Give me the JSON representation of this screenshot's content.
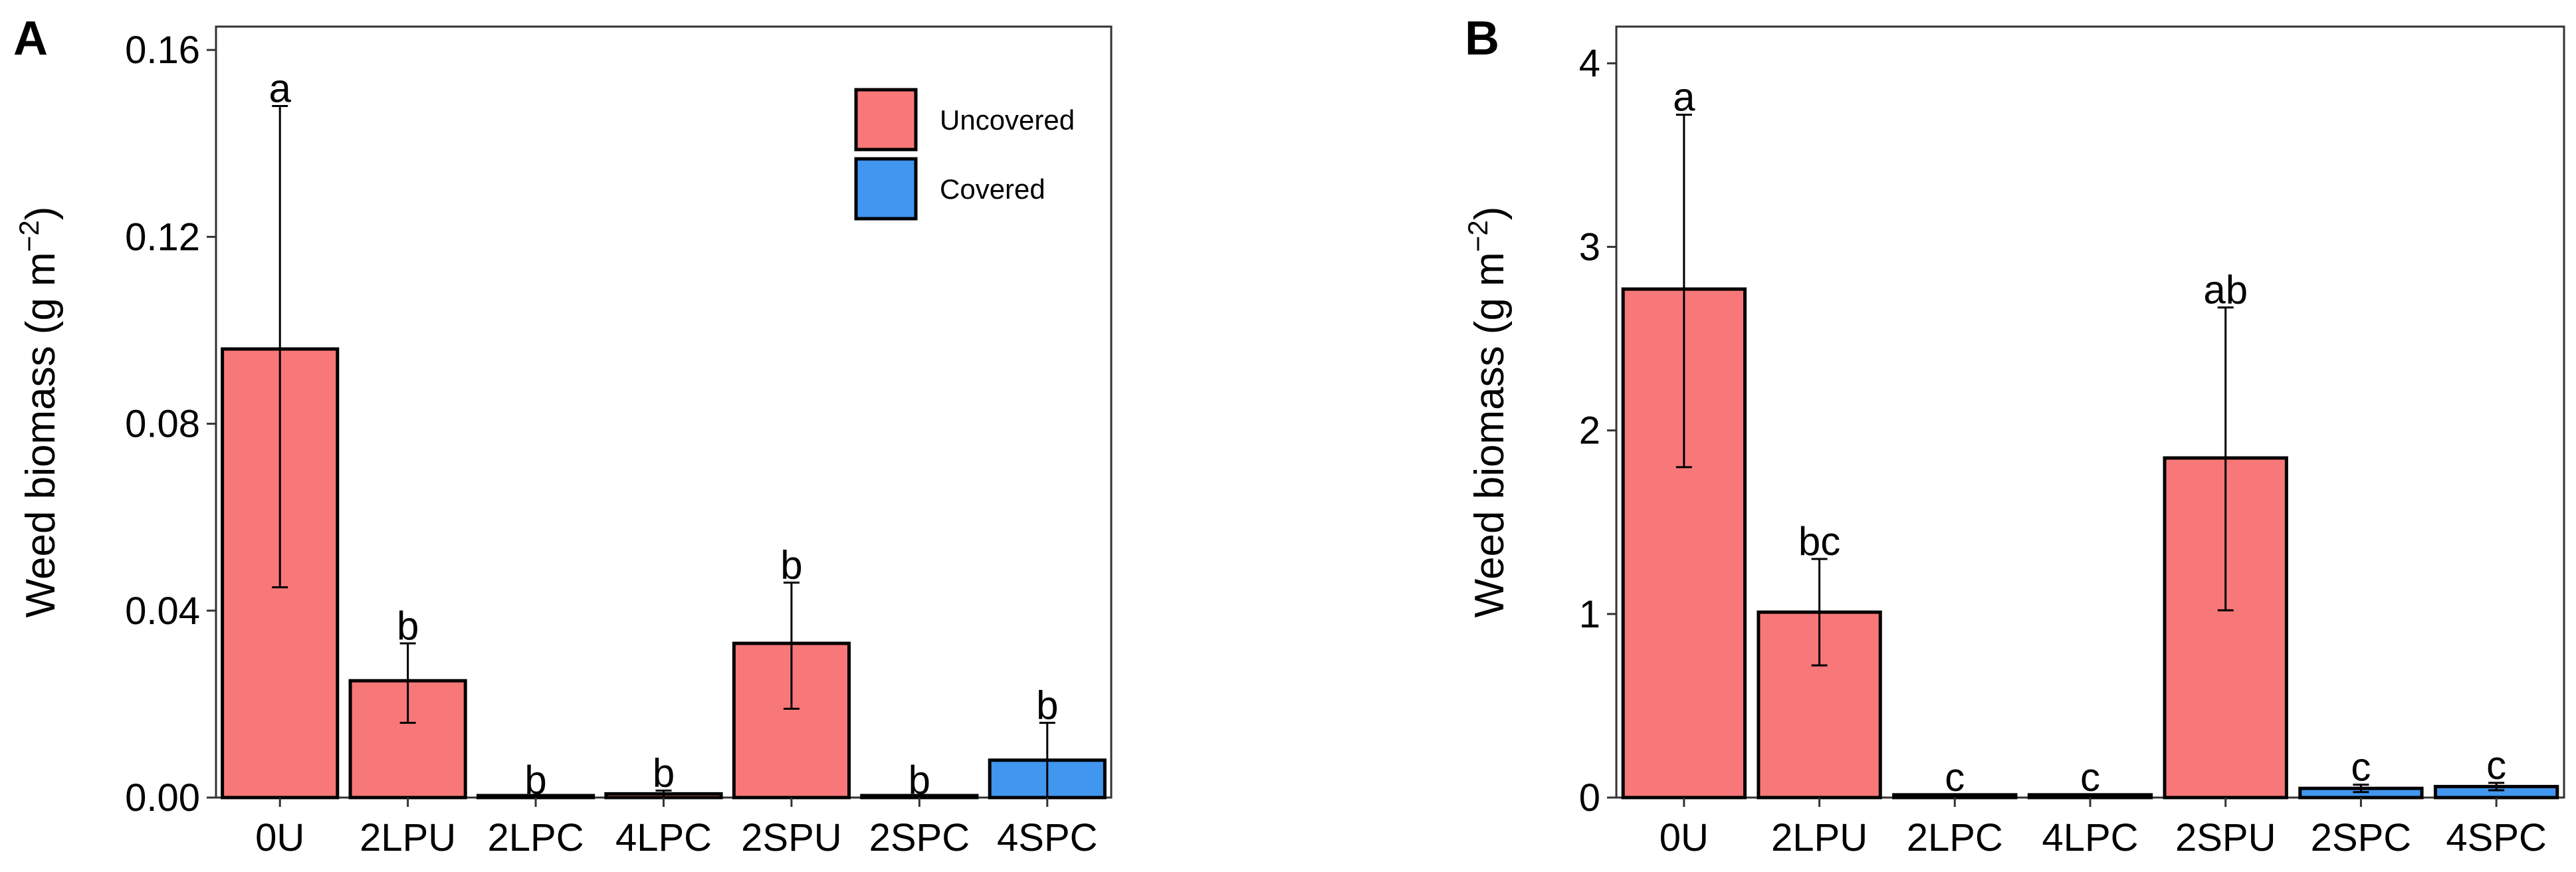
{
  "colors": {
    "uncovered": "#F8787A",
    "covered": "#4196F0",
    "border": "#000000"
  },
  "legend": {
    "entries": [
      {
        "label": "Uncovered",
        "color_key": "uncovered"
      },
      {
        "label": "Covered",
        "color_key": "covered"
      }
    ]
  },
  "chart_data": [
    {
      "type": "bar",
      "panel": "A",
      "title": "",
      "xlabel": "",
      "ylabel_main": "Weed biomass (g m",
      "ylabel_sup": "−2",
      "ylabel_close": ")",
      "ylim": [
        0,
        0.165
      ],
      "yticks": [
        0.0,
        0.04,
        0.08,
        0.12,
        0.16
      ],
      "ytick_labels": [
        "0.00",
        "0.04",
        "0.08",
        "0.12",
        "0.16"
      ],
      "categories": [
        "0U",
        "2LPU",
        "2LPC",
        "4LPC",
        "2SPU",
        "2SPC",
        "4SPC"
      ],
      "values": [
        0.096,
        0.025,
        0.0,
        0.0008,
        0.033,
        0.0,
        0.008
      ],
      "err_low": [
        0.045,
        0.016,
        0.0,
        0.0,
        0.019,
        0.0,
        0.0
      ],
      "err_high": [
        0.148,
        0.033,
        0.0,
        0.0015,
        0.046,
        0.0,
        0.016
      ],
      "groups": [
        "uncovered",
        "uncovered",
        "uncovered",
        "uncovered",
        "uncovered",
        "uncovered",
        "covered"
      ],
      "letters": [
        "a",
        "b",
        "b",
        "b",
        "b",
        "b",
        "b"
      ],
      "legend_position": "top-right"
    },
    {
      "type": "bar",
      "panel": "B",
      "title": "",
      "xlabel": "",
      "ylabel_main": "Weed biomass (g m",
      "ylabel_sup": "−2",
      "ylabel_close": ")",
      "ylim": [
        0,
        4.2
      ],
      "yticks": [
        0,
        1,
        2,
        3,
        4
      ],
      "ytick_labels": [
        "0",
        "1",
        "2",
        "3",
        "4"
      ],
      "categories": [
        "0U",
        "2LPU",
        "2LPC",
        "4LPC",
        "2SPU",
        "2SPC",
        "4SPC"
      ],
      "values": [
        2.77,
        1.01,
        0.015,
        0.015,
        1.85,
        0.05,
        0.06
      ],
      "err_low": [
        1.8,
        0.72,
        0.0,
        0.0,
        1.02,
        0.03,
        0.04
      ],
      "err_high": [
        3.72,
        1.3,
        0.0,
        0.0,
        2.67,
        0.07,
        0.08
      ],
      "groups": [
        "uncovered",
        "uncovered",
        "covered",
        "covered",
        "uncovered",
        "covered",
        "covered"
      ],
      "letters": [
        "a",
        "bc",
        "c",
        "c",
        "ab",
        "c",
        "c"
      ],
      "legend_position": "none"
    }
  ]
}
